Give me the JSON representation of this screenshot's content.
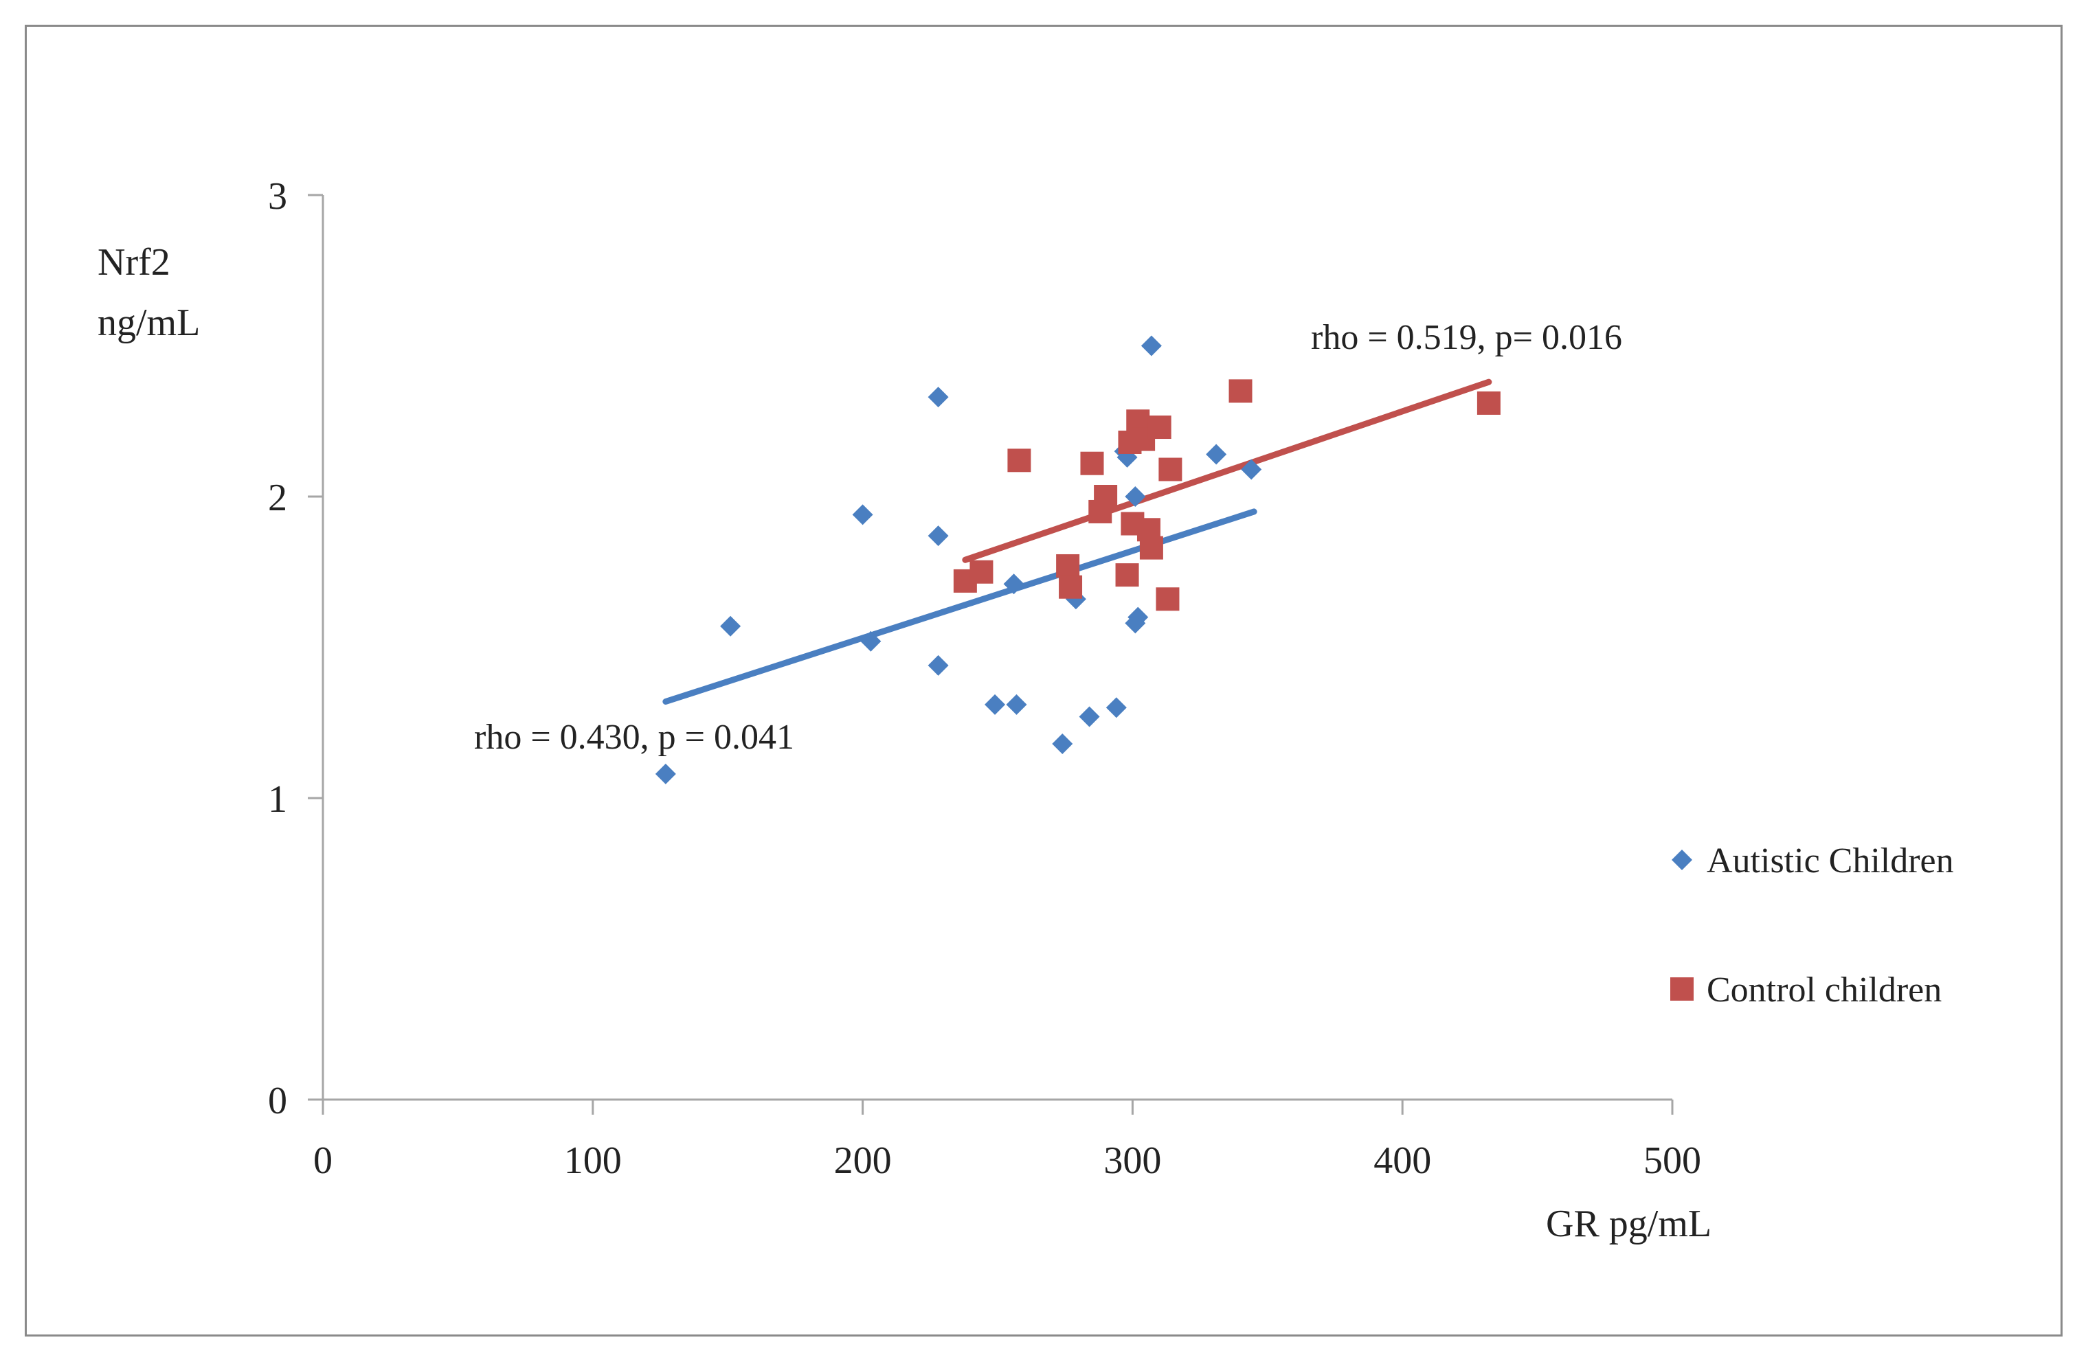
{
  "chart_data": {
    "type": "scatter",
    "title": "",
    "xlabel": "GR pg/mL",
    "ylabel_lines": [
      "Nrf2",
      "ng/mL"
    ],
    "xlim": [
      0,
      500
    ],
    "ylim": [
      0,
      3
    ],
    "x_ticks": [
      0,
      100,
      200,
      300,
      400,
      500
    ],
    "y_ticks": [
      0,
      1,
      2,
      3
    ],
    "grid": false,
    "legend_position": "right",
    "series": [
      {
        "name": "Autistic Children",
        "marker": "diamond",
        "color": "#4a7fc1",
        "points": [
          [
            127,
            1.08
          ],
          [
            151,
            1.57
          ],
          [
            200,
            1.94
          ],
          [
            203,
            1.52
          ],
          [
            228,
            2.33
          ],
          [
            228,
            1.87
          ],
          [
            228,
            1.44
          ],
          [
            249,
            1.31
          ],
          [
            257,
            1.31
          ],
          [
            256,
            1.71
          ],
          [
            274,
            1.18
          ],
          [
            279,
            1.66
          ],
          [
            284,
            1.27
          ],
          [
            294,
            1.3
          ],
          [
            297,
            2.15
          ],
          [
            298,
            2.13
          ],
          [
            301,
            2.0
          ],
          [
            302,
            1.6
          ],
          [
            301,
            1.58
          ],
          [
            307,
            2.5
          ],
          [
            331,
            2.14
          ],
          [
            344,
            2.09
          ]
        ],
        "trendline": {
          "x": [
            127,
            345
          ],
          "y": [
            1.32,
            1.95
          ]
        },
        "annotation": "rho = 0.430, p = 0.041"
      },
      {
        "name": "Control children",
        "marker": "square",
        "color": "#c0504d",
        "points": [
          [
            238,
            1.72
          ],
          [
            244,
            1.75
          ],
          [
            258,
            2.12
          ],
          [
            276,
            1.77
          ],
          [
            277,
            1.7
          ],
          [
            285,
            2.11
          ],
          [
            288,
            1.95
          ],
          [
            290,
            2.0
          ],
          [
            298,
            1.74
          ],
          [
            299,
            2.18
          ],
          [
            300,
            1.91
          ],
          [
            302,
            2.25
          ],
          [
            304,
            2.19
          ],
          [
            306,
            1.89
          ],
          [
            307,
            1.83
          ],
          [
            310,
            2.23
          ],
          [
            313,
            1.66
          ],
          [
            314,
            2.09
          ],
          [
            340,
            2.35
          ],
          [
            432,
            2.31
          ]
        ],
        "trendline": {
          "x": [
            238,
            432
          ],
          "y": [
            1.79,
            2.38
          ]
        },
        "annotation": "rho = 0.519, p= 0.016"
      }
    ]
  }
}
